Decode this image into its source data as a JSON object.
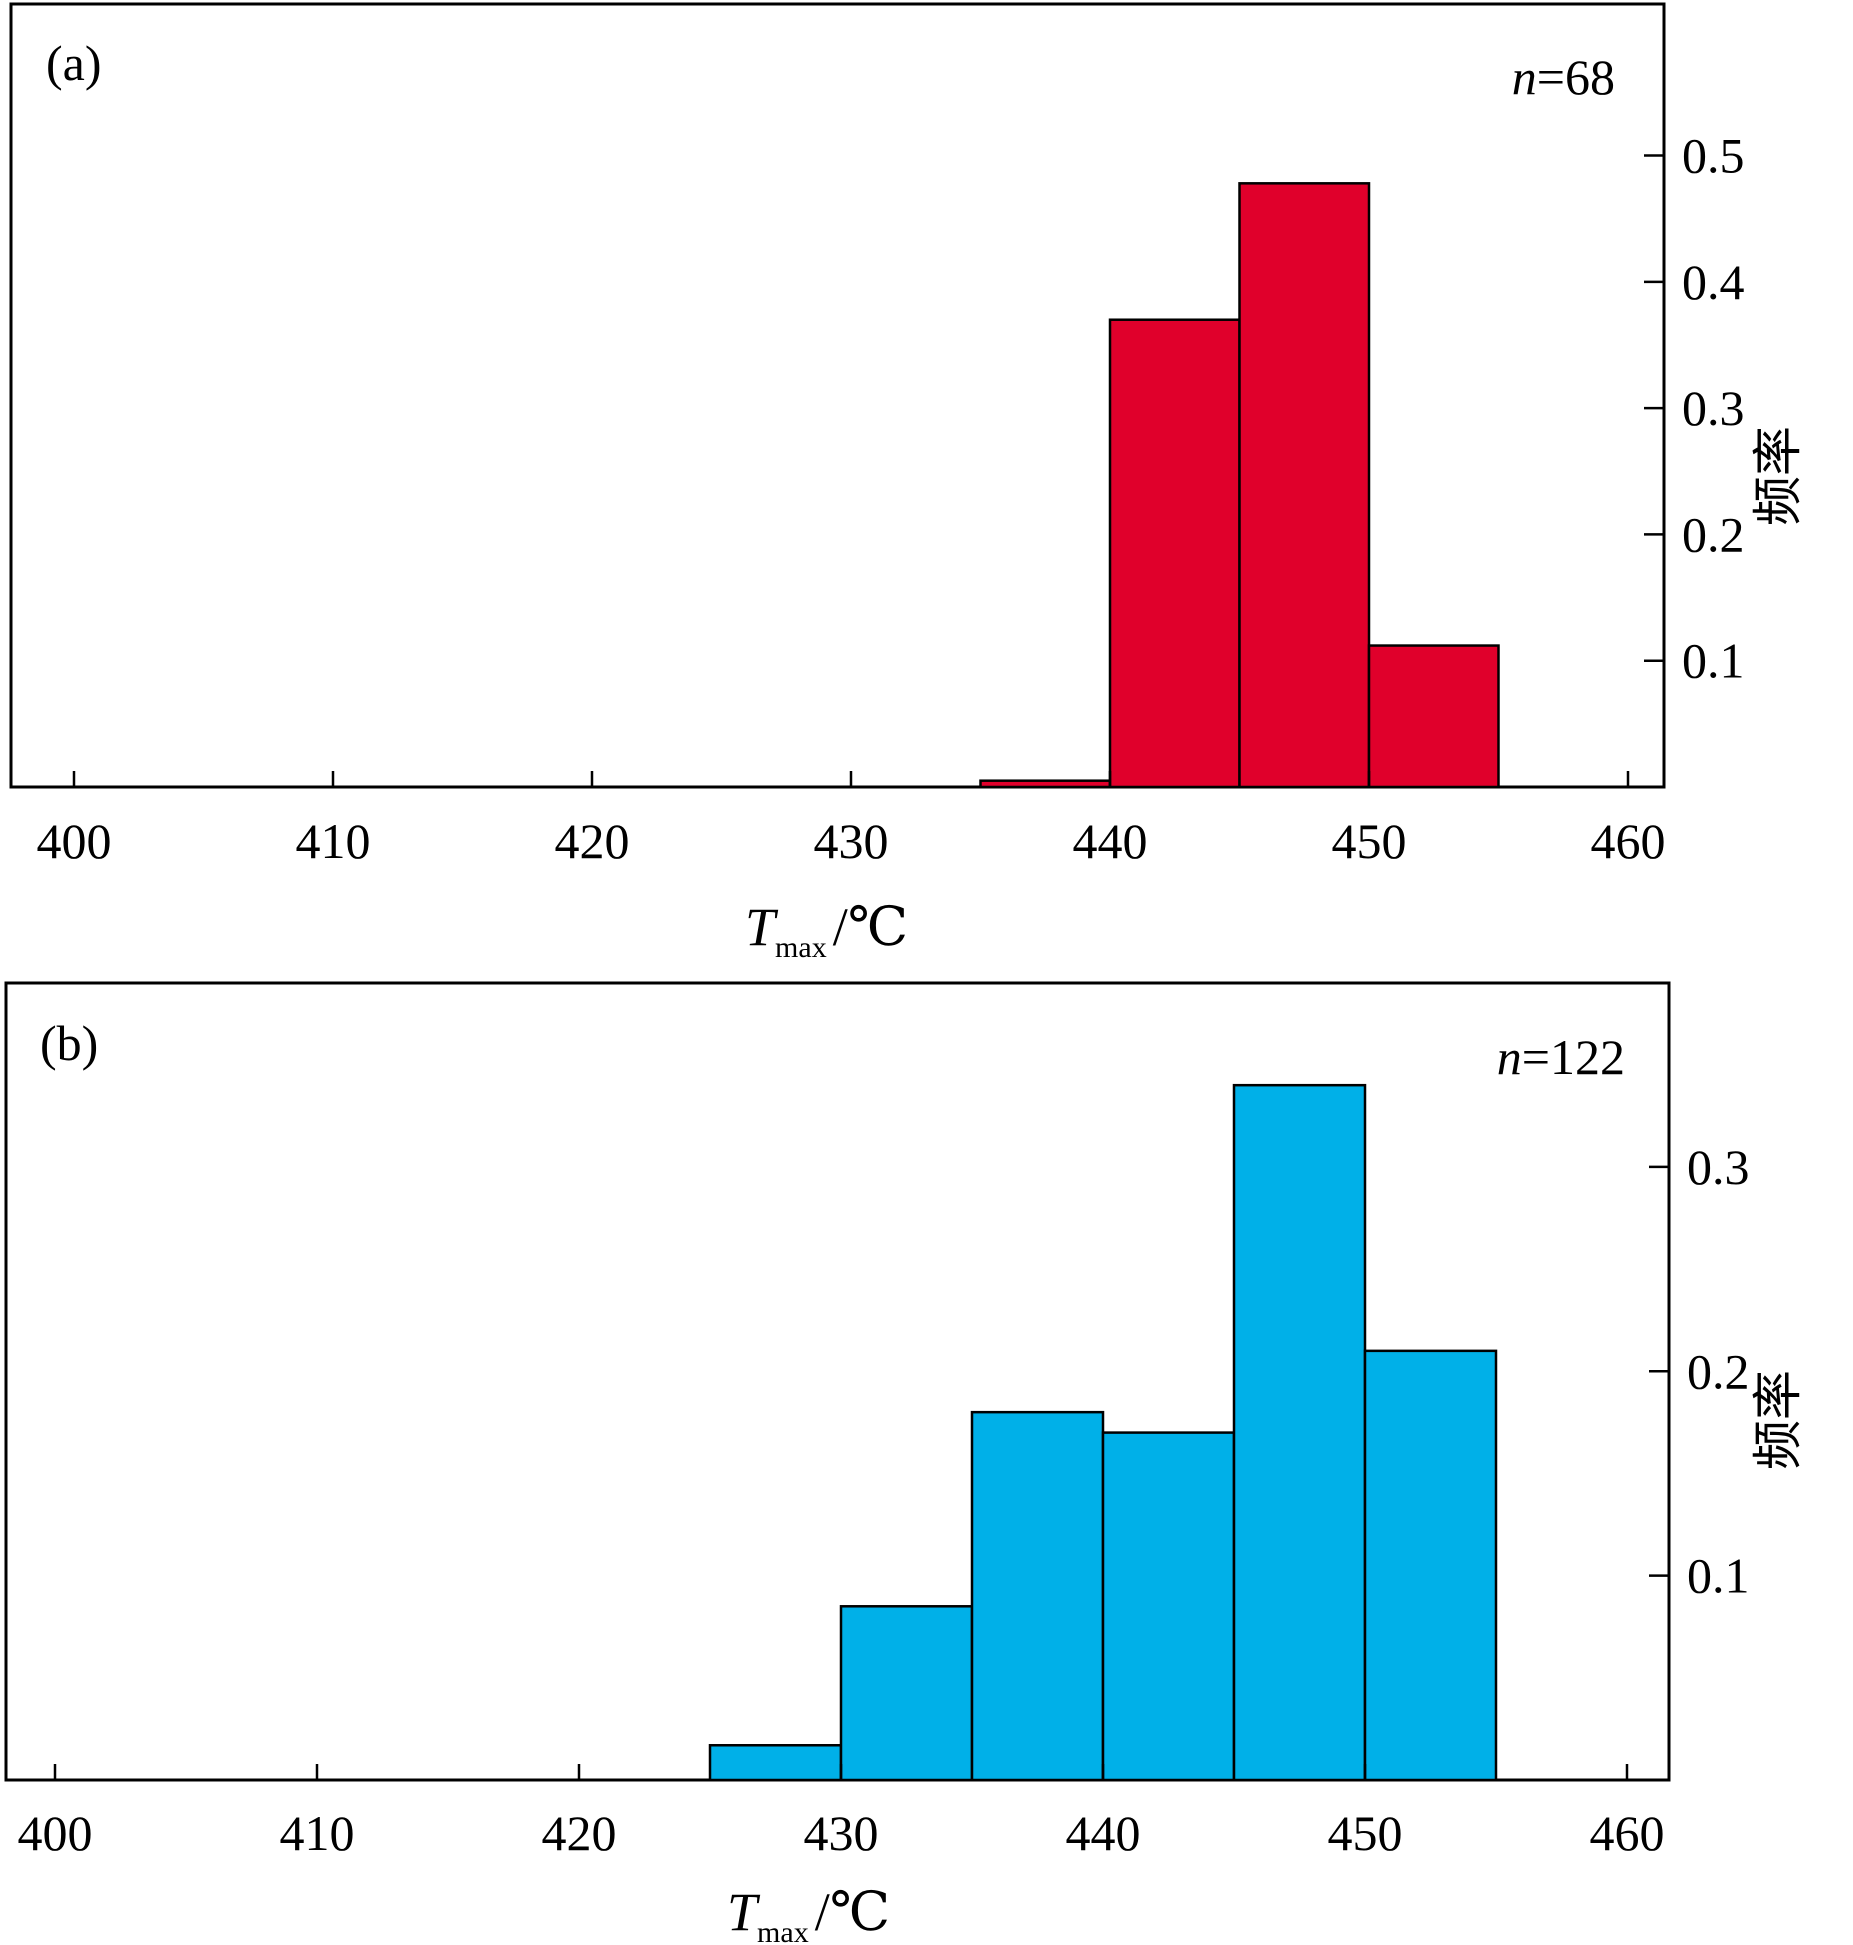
{
  "chart_data": [
    {
      "type": "bar",
      "panel_label": "(a)",
      "annotation": {
        "italic": "n",
        "text": "=68"
      },
      "bins": [
        {
          "x0": 435,
          "x1": 440,
          "value": 0.005
        },
        {
          "x0": 440,
          "x1": 445,
          "value": 0.37
        },
        {
          "x0": 445,
          "x1": 450,
          "value": 0.478
        },
        {
          "x0": 450,
          "x1": 455,
          "value": 0.112
        }
      ],
      "fill_color": "#e0002b",
      "xlim": [
        400,
        460
      ],
      "xticks": [
        400,
        410,
        420,
        430,
        440,
        450,
        460
      ],
      "xtick_labels": [
        "400",
        "410",
        "420",
        "430",
        "440",
        "450",
        "460"
      ],
      "ylim": [
        0,
        0.62
      ],
      "yticks": [
        0.1,
        0.2,
        0.3,
        0.4,
        0.5
      ],
      "ytick_labels": [
        "0.1",
        "0.2",
        "0.3",
        "0.4",
        "0.5"
      ],
      "y_axis_side": "right",
      "xlabel": {
        "main": "T",
        "sub": "max",
        "unit": "/℃"
      },
      "ylabel": "频率"
    },
    {
      "type": "bar",
      "panel_label": "(b)",
      "annotation": {
        "italic": "n",
        "text": "=122"
      },
      "bins": [
        {
          "x0": 425,
          "x1": 430,
          "value": 0.017
        },
        {
          "x0": 430,
          "x1": 435,
          "value": 0.085
        },
        {
          "x0": 435,
          "x1": 440,
          "value": 0.18
        },
        {
          "x0": 440,
          "x1": 445,
          "value": 0.17
        },
        {
          "x0": 445,
          "x1": 450,
          "value": 0.34
        },
        {
          "x0": 450,
          "x1": 455,
          "value": 0.21
        }
      ],
      "fill_color": "#00b0e8",
      "xlim": [
        400,
        460
      ],
      "xticks": [
        400,
        410,
        420,
        430,
        440,
        450,
        460
      ],
      "xtick_labels": [
        "400",
        "410",
        "420",
        "430",
        "440",
        "450",
        "460"
      ],
      "ylim": [
        0,
        0.39
      ],
      "yticks": [
        0.1,
        0.2,
        0.3
      ],
      "ytick_labels": [
        "0.1",
        "0.2",
        "0.3"
      ],
      "y_axis_side": "right",
      "xlabel": {
        "main": "T",
        "sub": "max",
        "unit": "/℃"
      },
      "ylabel": "频率"
    }
  ]
}
